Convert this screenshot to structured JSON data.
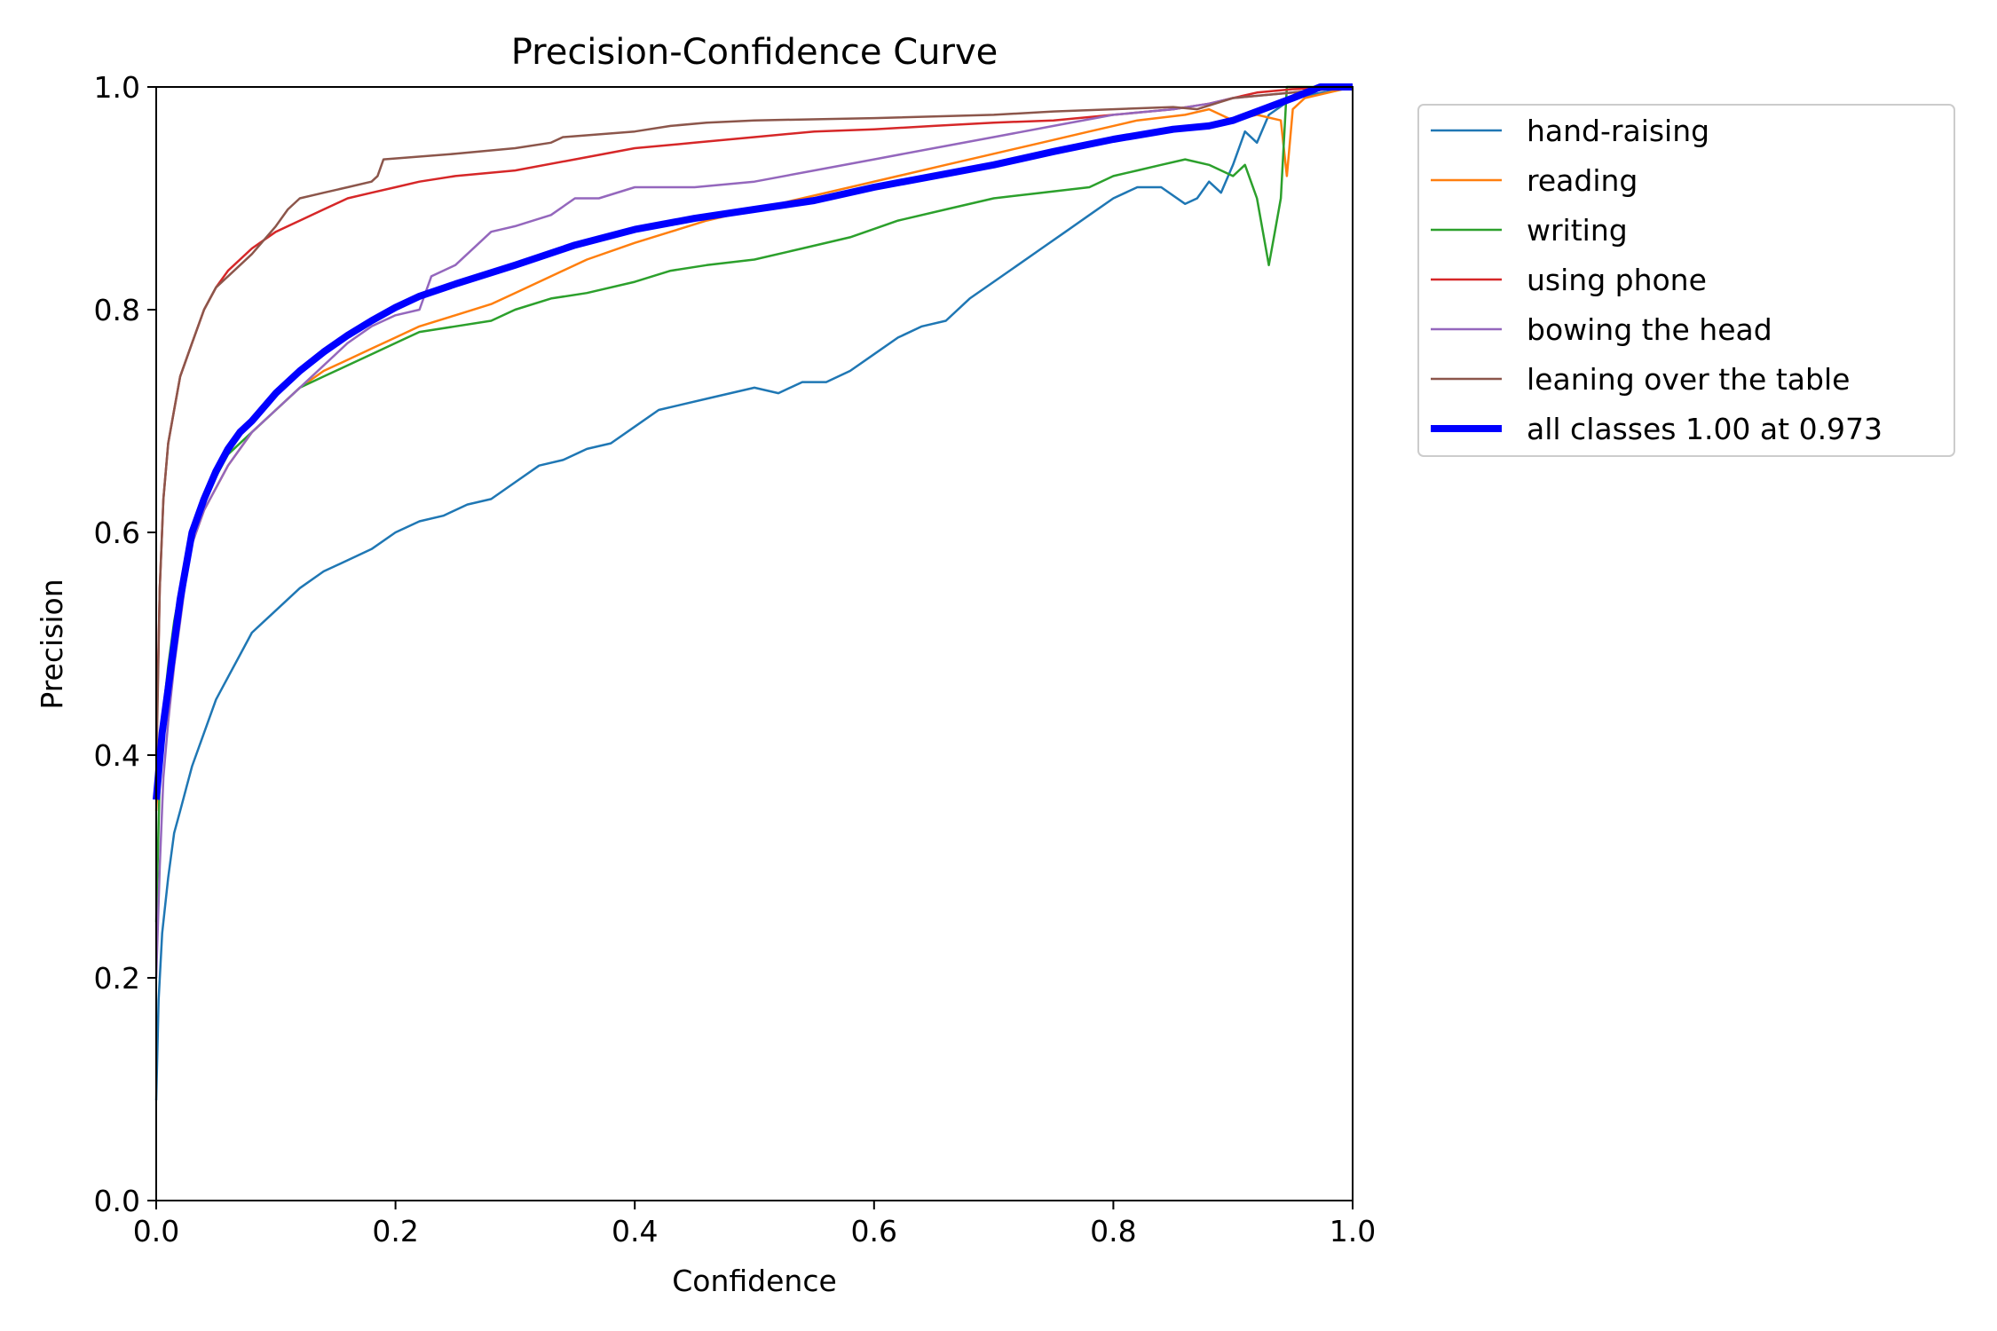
{
  "chart_data": {
    "type": "line",
    "title": "Precision-Confidence Curve",
    "xlabel": "Confidence",
    "ylabel": "Precision",
    "xlim": [
      0,
      1
    ],
    "ylim": [
      0,
      1
    ],
    "xticks": [
      "0.0",
      "0.2",
      "0.4",
      "0.6",
      "0.8",
      "1.0"
    ],
    "yticks": [
      "0.0",
      "0.2",
      "0.4",
      "0.6",
      "0.8",
      "1.0"
    ],
    "grid": false,
    "legend_position": "outside-upper-right",
    "series": [
      {
        "name": "hand-raising",
        "color": "#1f77b4",
        "x": [
          0.0,
          0.002,
          0.005,
          0.01,
          0.015,
          0.02,
          0.025,
          0.03,
          0.04,
          0.05,
          0.06,
          0.07,
          0.08,
          0.09,
          0.1,
          0.12,
          0.14,
          0.16,
          0.18,
          0.2,
          0.22,
          0.24,
          0.26,
          0.28,
          0.3,
          0.32,
          0.34,
          0.36,
          0.38,
          0.4,
          0.42,
          0.44,
          0.46,
          0.48,
          0.5,
          0.52,
          0.54,
          0.56,
          0.58,
          0.6,
          0.62,
          0.64,
          0.66,
          0.68,
          0.7,
          0.72,
          0.74,
          0.76,
          0.78,
          0.8,
          0.82,
          0.84,
          0.86,
          0.87,
          0.88,
          0.89,
          0.9,
          0.91,
          0.92,
          0.93,
          0.95,
          1.0
        ],
        "y": [
          0.09,
          0.18,
          0.24,
          0.29,
          0.33,
          0.35,
          0.37,
          0.39,
          0.42,
          0.45,
          0.47,
          0.49,
          0.51,
          0.52,
          0.53,
          0.55,
          0.565,
          0.575,
          0.585,
          0.6,
          0.61,
          0.615,
          0.625,
          0.63,
          0.645,
          0.66,
          0.665,
          0.675,
          0.68,
          0.695,
          0.71,
          0.715,
          0.72,
          0.725,
          0.73,
          0.725,
          0.735,
          0.735,
          0.745,
          0.76,
          0.775,
          0.785,
          0.79,
          0.81,
          0.825,
          0.84,
          0.855,
          0.87,
          0.885,
          0.9,
          0.91,
          0.91,
          0.895,
          0.9,
          0.915,
          0.905,
          0.93,
          0.96,
          0.95,
          0.975,
          0.99,
          1.0
        ]
      },
      {
        "name": "reading",
        "color": "#ff7f0e",
        "x": [
          0.0,
          0.003,
          0.006,
          0.01,
          0.015,
          0.02,
          0.025,
          0.03,
          0.04,
          0.05,
          0.06,
          0.08,
          0.1,
          0.12,
          0.14,
          0.16,
          0.18,
          0.2,
          0.22,
          0.25,
          0.28,
          0.3,
          0.33,
          0.36,
          0.4,
          0.43,
          0.46,
          0.5,
          0.54,
          0.58,
          0.62,
          0.66,
          0.7,
          0.74,
          0.78,
          0.82,
          0.86,
          0.88,
          0.9,
          0.92,
          0.94,
          0.945,
          0.95,
          0.96,
          1.0
        ],
        "y": [
          0.35,
          0.4,
          0.43,
          0.46,
          0.5,
          0.53,
          0.56,
          0.59,
          0.62,
          0.64,
          0.66,
          0.69,
          0.71,
          0.73,
          0.745,
          0.755,
          0.765,
          0.775,
          0.785,
          0.795,
          0.805,
          0.815,
          0.83,
          0.845,
          0.86,
          0.87,
          0.88,
          0.89,
          0.9,
          0.91,
          0.92,
          0.93,
          0.94,
          0.95,
          0.96,
          0.97,
          0.975,
          0.98,
          0.97,
          0.975,
          0.97,
          0.92,
          0.98,
          0.99,
          1.0
        ]
      },
      {
        "name": "writing",
        "color": "#2ca02c",
        "x": [
          0.0,
          0.003,
          0.006,
          0.01,
          0.015,
          0.02,
          0.025,
          0.03,
          0.04,
          0.05,
          0.06,
          0.08,
          0.1,
          0.12,
          0.14,
          0.16,
          0.18,
          0.2,
          0.22,
          0.25,
          0.28,
          0.3,
          0.33,
          0.36,
          0.4,
          0.43,
          0.46,
          0.5,
          0.54,
          0.58,
          0.62,
          0.66,
          0.7,
          0.74,
          0.78,
          0.8,
          0.82,
          0.84,
          0.86,
          0.88,
          0.9,
          0.91,
          0.92,
          0.925,
          0.93,
          0.935,
          0.94,
          0.945,
          1.0
        ],
        "y": [
          0.25,
          0.38,
          0.44,
          0.48,
          0.52,
          0.55,
          0.58,
          0.6,
          0.63,
          0.65,
          0.67,
          0.69,
          0.71,
          0.73,
          0.74,
          0.75,
          0.76,
          0.77,
          0.78,
          0.785,
          0.79,
          0.8,
          0.81,
          0.815,
          0.825,
          0.835,
          0.84,
          0.845,
          0.855,
          0.865,
          0.88,
          0.89,
          0.9,
          0.905,
          0.91,
          0.92,
          0.925,
          0.93,
          0.935,
          0.93,
          0.92,
          0.93,
          0.9,
          0.87,
          0.84,
          0.87,
          0.9,
          1.0,
          1.0
        ]
      },
      {
        "name": "using phone",
        "color": "#d62728",
        "x": [
          0.0,
          0.003,
          0.006,
          0.01,
          0.015,
          0.02,
          0.03,
          0.04,
          0.05,
          0.06,
          0.08,
          0.1,
          0.12,
          0.14,
          0.16,
          0.18,
          0.2,
          0.22,
          0.25,
          0.3,
          0.35,
          0.4,
          0.45,
          0.5,
          0.55,
          0.6,
          0.65,
          0.7,
          0.75,
          0.8,
          0.85,
          0.88,
          0.9,
          0.92,
          0.95,
          1.0
        ],
        "y": [
          0.4,
          0.55,
          0.63,
          0.68,
          0.71,
          0.74,
          0.77,
          0.8,
          0.82,
          0.835,
          0.855,
          0.87,
          0.88,
          0.89,
          0.9,
          0.905,
          0.91,
          0.915,
          0.92,
          0.925,
          0.935,
          0.945,
          0.95,
          0.955,
          0.96,
          0.962,
          0.965,
          0.968,
          0.97,
          0.975,
          0.98,
          0.985,
          0.99,
          0.995,
          0.998,
          1.0
        ]
      },
      {
        "name": "bowing the head",
        "color": "#9467bd",
        "x": [
          0.0,
          0.003,
          0.006,
          0.01,
          0.015,
          0.02,
          0.025,
          0.03,
          0.04,
          0.05,
          0.06,
          0.08,
          0.1,
          0.12,
          0.14,
          0.16,
          0.18,
          0.2,
          0.22,
          0.23,
          0.25,
          0.27,
          0.28,
          0.3,
          0.33,
          0.35,
          0.37,
          0.4,
          0.45,
          0.5,
          0.55,
          0.6,
          0.65,
          0.7,
          0.75,
          0.8,
          0.85,
          0.88,
          0.9,
          0.95,
          1.0
        ],
        "y": [
          0.2,
          0.3,
          0.38,
          0.43,
          0.48,
          0.52,
          0.56,
          0.59,
          0.62,
          0.64,
          0.66,
          0.69,
          0.71,
          0.73,
          0.75,
          0.77,
          0.785,
          0.795,
          0.8,
          0.83,
          0.84,
          0.86,
          0.87,
          0.875,
          0.885,
          0.9,
          0.9,
          0.91,
          0.91,
          0.915,
          0.925,
          0.935,
          0.945,
          0.955,
          0.965,
          0.975,
          0.98,
          0.985,
          0.99,
          0.995,
          1.0
        ]
      },
      {
        "name": "leaning over the table",
        "color": "#8c564b",
        "x": [
          0.0,
          0.003,
          0.006,
          0.01,
          0.015,
          0.02,
          0.03,
          0.04,
          0.05,
          0.06,
          0.08,
          0.1,
          0.11,
          0.12,
          0.14,
          0.16,
          0.18,
          0.185,
          0.19,
          0.25,
          0.3,
          0.33,
          0.34,
          0.4,
          0.43,
          0.46,
          0.5,
          0.6,
          0.7,
          0.75,
          0.8,
          0.85,
          0.87,
          0.9,
          0.95,
          1.0
        ],
        "y": [
          0.38,
          0.55,
          0.63,
          0.68,
          0.71,
          0.74,
          0.77,
          0.8,
          0.82,
          0.83,
          0.85,
          0.875,
          0.89,
          0.9,
          0.905,
          0.91,
          0.915,
          0.92,
          0.935,
          0.94,
          0.945,
          0.95,
          0.955,
          0.96,
          0.965,
          0.968,
          0.97,
          0.972,
          0.975,
          0.978,
          0.98,
          0.982,
          0.98,
          0.99,
          0.995,
          1.0
        ]
      },
      {
        "name": "all classes 1.00 at 0.973",
        "color": "#0000ff",
        "bold": true,
        "x": [
          0.0,
          0.005,
          0.01,
          0.015,
          0.02,
          0.025,
          0.03,
          0.04,
          0.05,
          0.06,
          0.07,
          0.08,
          0.1,
          0.12,
          0.14,
          0.16,
          0.18,
          0.2,
          0.22,
          0.25,
          0.3,
          0.35,
          0.4,
          0.45,
          0.5,
          0.55,
          0.6,
          0.65,
          0.7,
          0.75,
          0.8,
          0.85,
          0.88,
          0.9,
          0.92,
          0.95,
          0.973,
          1.0
        ],
        "y": [
          0.36,
          0.42,
          0.46,
          0.5,
          0.54,
          0.57,
          0.6,
          0.63,
          0.655,
          0.675,
          0.69,
          0.7,
          0.725,
          0.745,
          0.762,
          0.777,
          0.79,
          0.802,
          0.812,
          0.823,
          0.84,
          0.858,
          0.872,
          0.882,
          0.89,
          0.898,
          0.91,
          0.92,
          0.93,
          0.942,
          0.953,
          0.962,
          0.965,
          0.97,
          0.978,
          0.99,
          1.0,
          1.0
        ]
      }
    ]
  }
}
